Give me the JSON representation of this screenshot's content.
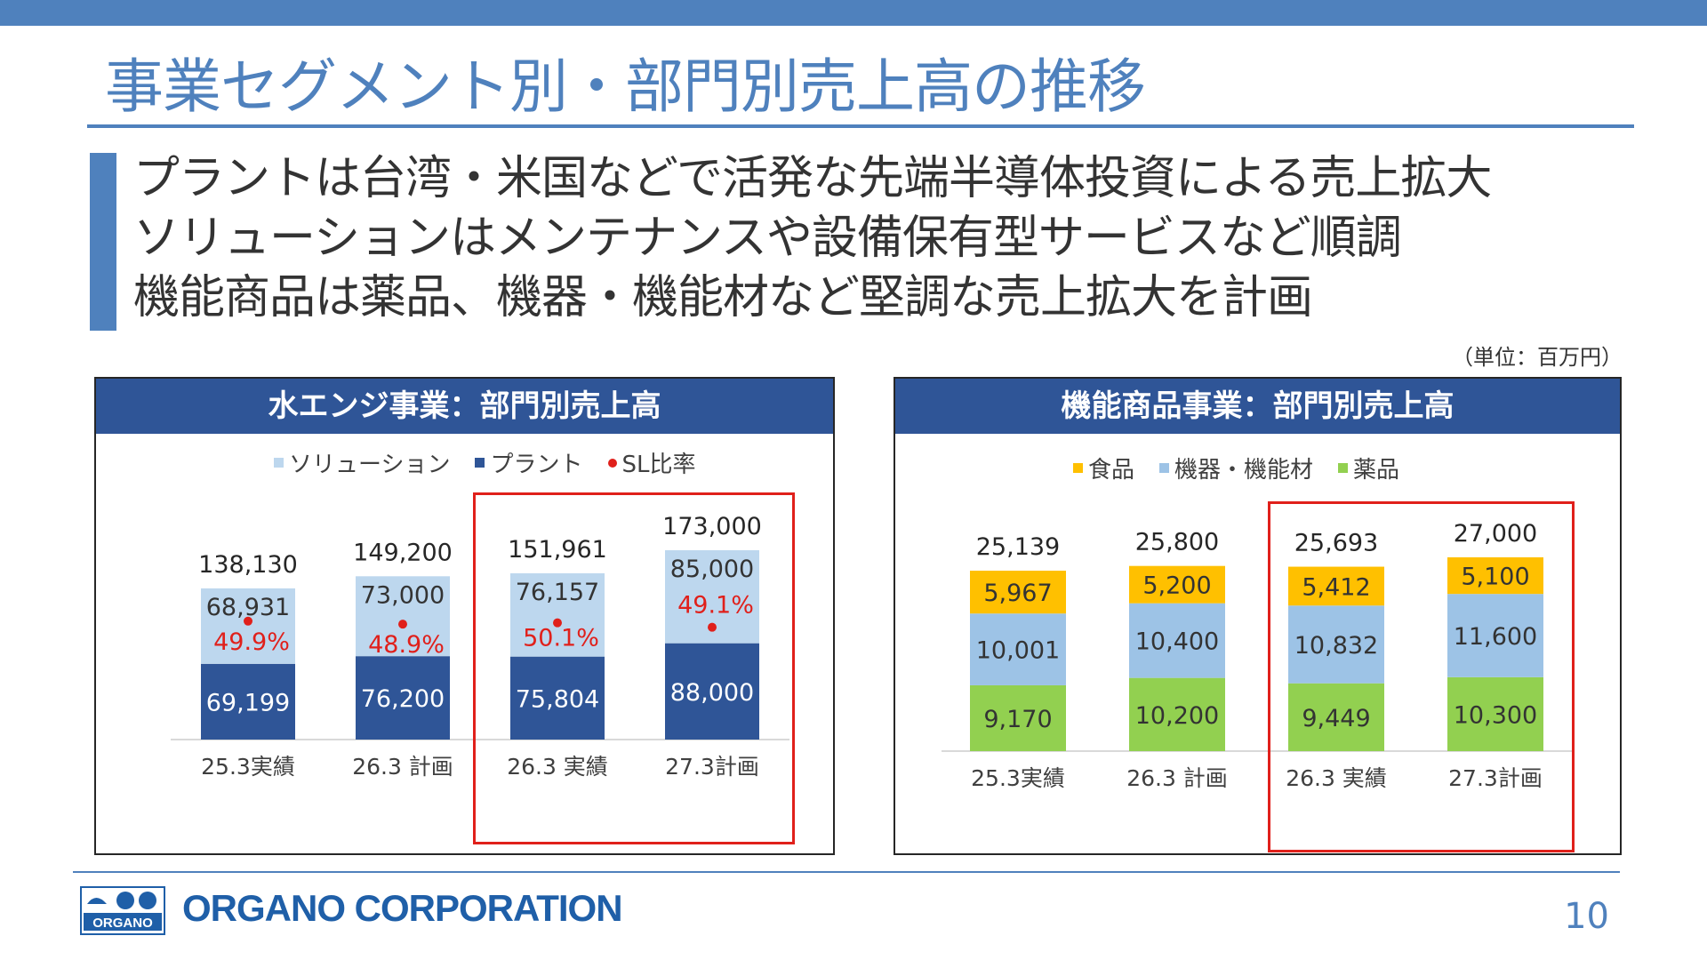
{
  "slide": {
    "title": "事業セグメント別・部門別売上高の推移",
    "bullets": [
      "プラントは台湾・米国などで活発な先端半導体投資による売上拡大",
      "ソリューションはメンテナンスや設備保有型サービスなど順調",
      "機能商品は薬品、機器・機能材など堅調な売上拡大を計画"
    ],
    "unit": "（単位：百万円）",
    "company": "ORGANO CORPORATION",
    "logo_text": "ORGANO",
    "page_number": "10",
    "colors": {
      "accent": "#4f81bd",
      "header_navy": "#2f5597",
      "highlight_red": "#e0201b"
    }
  },
  "chart_data": [
    {
      "type": "bar",
      "stacked": true,
      "title": "水エンジ事業：部門別売上高",
      "categories": [
        "25.3実績",
        "26.3 計画",
        "26.3 実績",
        "27.3計画"
      ],
      "series": [
        {
          "name": "プラント",
          "values": [
            69199,
            76200,
            75804,
            88000
          ],
          "color": "#2f5597"
        },
        {
          "name": "ソリューション",
          "values": [
            68931,
            73000,
            76157,
            85000
          ],
          "color": "#bdd7ee"
        }
      ],
      "totals": [
        138130,
        149200,
        151961,
        173000
      ],
      "overlay": {
        "name": "SL比率",
        "values": [
          49.9,
          48.9,
          50.1,
          49.1
        ],
        "labels": [
          "49.9%",
          "48.9%",
          "50.1%",
          "49.1%"
        ],
        "color": "#e0201b"
      },
      "legend": [
        "ソリューション",
        "プラント",
        "SL比率"
      ],
      "legend_position": "top",
      "highlighted_categories": [
        "26.3 実績",
        "27.3計画"
      ]
    },
    {
      "type": "bar",
      "stacked": true,
      "title": "機能商品事業：部門別売上高",
      "categories": [
        "25.3実績",
        "26.3 計画",
        "26.3 実績",
        "27.3計画"
      ],
      "series": [
        {
          "name": "薬品",
          "values": [
            9170,
            10200,
            9449,
            10300
          ],
          "color": "#92d050"
        },
        {
          "name": "機器・機能材",
          "values": [
            10001,
            10400,
            10832,
            11600
          ],
          "color": "#9dc3e6"
        },
        {
          "name": "食品",
          "values": [
            5967,
            5200,
            5412,
            5100
          ],
          "color": "#ffc000"
        }
      ],
      "totals": [
        25139,
        25800,
        25693,
        27000
      ],
      "legend": [
        "食品",
        "機器・機能材",
        "薬品"
      ],
      "legend_position": "top",
      "highlighted_categories": [
        "26.3 実績",
        "27.3計画"
      ]
    }
  ]
}
